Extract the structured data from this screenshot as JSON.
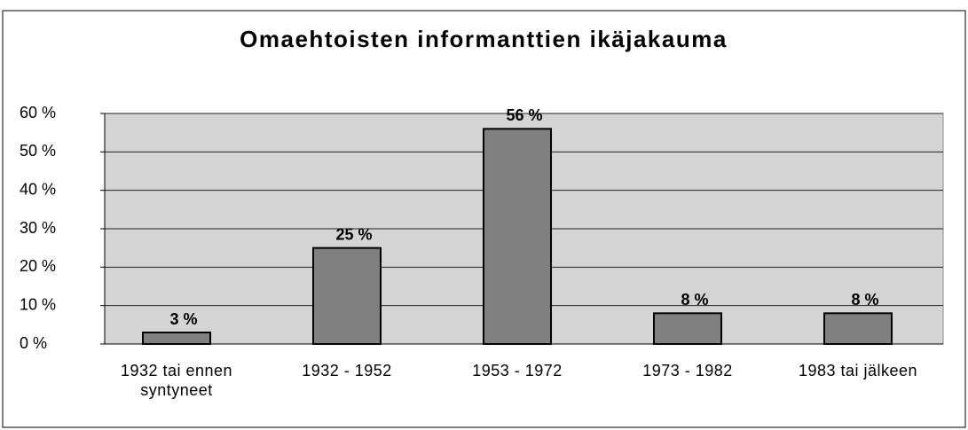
{
  "chart_data": {
    "type": "bar",
    "title": "Omaehtoisten informanttien ikäjakauma",
    "categories": [
      "1932 tai ennen syntyneet",
      "1932 - 1952",
      "1953 - 1972",
      "1973 - 1982",
      "1983 tai jälkeen"
    ],
    "values": [
      3,
      25,
      56,
      8,
      8
    ],
    "value_labels": [
      "3 %",
      "25 %",
      "56 %",
      "8 %",
      "8 %"
    ],
    "color": "#808080",
    "ylim": [
      0,
      60
    ],
    "yticks": [
      {
        "value": 0,
        "label": "0 %"
      },
      {
        "value": 10,
        "label": "10 %"
      },
      {
        "value": 20,
        "label": "20 %"
      },
      {
        "value": 30,
        "label": "30 %"
      },
      {
        "value": 40,
        "label": "40 %"
      },
      {
        "value": 50,
        "label": "50 %"
      },
      {
        "value": 60,
        "label": "60 %"
      }
    ],
    "grid": true
  }
}
